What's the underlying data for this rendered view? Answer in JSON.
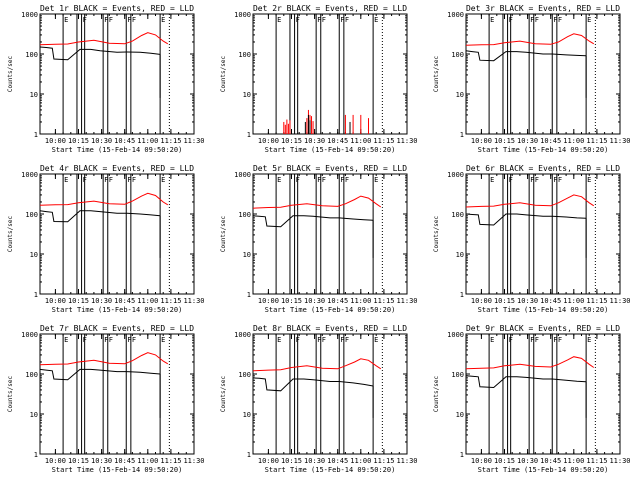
{
  "chart_data": {
    "type": "line",
    "layout": "3x3 grid",
    "xlabel": "Start Time (15-Feb-14 09:50:20)",
    "ylabel": "Counts/sec",
    "yscale": "log",
    "ylim": [
      1,
      1000
    ],
    "ytick_labels": [
      "1",
      "10",
      "100",
      "1000"
    ],
    "xlim_minutes": [
      0,
      100
    ],
    "xtick_labels": [
      "10:00",
      "10:15",
      "10:30",
      "10:45",
      "11:00",
      "11:15",
      "11:30"
    ],
    "colors": {
      "events": "#000000",
      "lld": "#ff0000"
    },
    "markers": {
      "solid_lines": [
        "10:05",
        "10:14",
        "10:17",
        "10:19",
        "10:31",
        "10:34",
        "10:46",
        "10:49",
        "11:08"
      ],
      "dotted_line": "11:14",
      "labels": [
        {
          "text": "E",
          "time": "10:05"
        },
        {
          "text": "F",
          "time": "10:17"
        },
        {
          "text": "F",
          "time": "10:31"
        },
        {
          "text": "F",
          "time": "10:34"
        },
        {
          "text": "F",
          "time": "10:46"
        },
        {
          "text": "F",
          "time": "10:49"
        },
        {
          "text": "E",
          "time": "11:08"
        }
      ]
    },
    "panels": [
      {
        "title": "Det 1r  BLACK = Events, RED = LLD",
        "red": [
          [
            0,
            170
          ],
          [
            10,
            175
          ],
          [
            18,
            178
          ],
          [
            25,
            200
          ],
          [
            35,
            220
          ],
          [
            45,
            185
          ],
          [
            55,
            180
          ],
          [
            60,
            210
          ],
          [
            66,
            290
          ],
          [
            70,
            340
          ],
          [
            75,
            300
          ],
          [
            80,
            210
          ],
          [
            83,
            180
          ]
        ],
        "black": [
          [
            0,
            150
          ],
          [
            4,
            145
          ],
          [
            8,
            140
          ],
          [
            9,
            75
          ],
          [
            18,
            72
          ],
          [
            26,
            130
          ],
          [
            33,
            130
          ],
          [
            39,
            120
          ],
          [
            50,
            110
          ],
          [
            56,
            112
          ],
          [
            65,
            110
          ],
          [
            72,
            105
          ],
          [
            78,
            98
          ]
        ]
      },
      {
        "title": "Det 2r  BLACK = Events, RED = LLD",
        "red_spikes": [
          [
            20,
            2
          ],
          [
            21,
            1.7
          ],
          [
            22,
            2.3
          ],
          [
            23,
            1.8
          ],
          [
            24,
            2.2
          ],
          [
            35,
            2.5
          ],
          [
            36,
            4
          ],
          [
            37,
            3
          ],
          [
            38,
            2.8
          ],
          [
            39,
            2.1
          ],
          [
            60,
            3
          ],
          [
            65,
            3
          ],
          [
            70,
            3
          ],
          [
            75,
            2.5
          ]
        ],
        "black_spikes": [
          [
            34,
            2
          ],
          [
            36,
            3
          ],
          [
            37,
            2.2
          ],
          [
            63,
            2
          ]
        ]
      },
      {
        "title": "Det 3r  BLACK = Events, RED = LLD",
        "red": [
          [
            0,
            165
          ],
          [
            10,
            170
          ],
          [
            18,
            172
          ],
          [
            25,
            190
          ],
          [
            35,
            210
          ],
          [
            45,
            180
          ],
          [
            55,
            175
          ],
          [
            60,
            200
          ],
          [
            66,
            270
          ],
          [
            70,
            320
          ],
          [
            75,
            290
          ],
          [
            80,
            210
          ],
          [
            83,
            180
          ]
        ],
        "black": [
          [
            0,
            120
          ],
          [
            4,
            115
          ],
          [
            8,
            110
          ],
          [
            9,
            70
          ],
          [
            18,
            68
          ],
          [
            26,
            115
          ],
          [
            33,
            115
          ],
          [
            39,
            110
          ],
          [
            50,
            100
          ],
          [
            56,
            100
          ],
          [
            65,
            95
          ],
          [
            72,
            92
          ],
          [
            78,
            90
          ]
        ]
      },
      {
        "title": "Det 4r  BLACK = Events, RED = LLD",
        "red": [
          [
            0,
            165
          ],
          [
            10,
            170
          ],
          [
            18,
            172
          ],
          [
            25,
            190
          ],
          [
            35,
            210
          ],
          [
            45,
            180
          ],
          [
            55,
            175
          ],
          [
            60,
            210
          ],
          [
            66,
            280
          ],
          [
            70,
            330
          ],
          [
            75,
            290
          ],
          [
            80,
            200
          ],
          [
            83,
            170
          ]
        ],
        "black": [
          [
            0,
            120
          ],
          [
            4,
            115
          ],
          [
            8,
            110
          ],
          [
            9,
            65
          ],
          [
            18,
            64
          ],
          [
            26,
            120
          ],
          [
            33,
            120
          ],
          [
            39,
            115
          ],
          [
            50,
            105
          ],
          [
            56,
            105
          ],
          [
            65,
            100
          ],
          [
            72,
            95
          ],
          [
            78,
            90
          ]
        ]
      },
      {
        "title": "Det 5r  BLACK = Events, RED = LLD",
        "red": [
          [
            0,
            140
          ],
          [
            10,
            145
          ],
          [
            18,
            148
          ],
          [
            25,
            165
          ],
          [
            35,
            180
          ],
          [
            45,
            160
          ],
          [
            55,
            155
          ],
          [
            60,
            180
          ],
          [
            66,
            230
          ],
          [
            70,
            280
          ],
          [
            75,
            250
          ],
          [
            80,
            180
          ],
          [
            83,
            150
          ]
        ],
        "black": [
          [
            0,
            90
          ],
          [
            4,
            88
          ],
          [
            8,
            85
          ],
          [
            9,
            50
          ],
          [
            18,
            48
          ],
          [
            26,
            90
          ],
          [
            33,
            90
          ],
          [
            39,
            88
          ],
          [
            50,
            80
          ],
          [
            56,
            80
          ],
          [
            65,
            75
          ],
          [
            72,
            72
          ],
          [
            78,
            70
          ]
        ]
      },
      {
        "title": "Det 6r  BLACK = Events, RED = LLD",
        "red": [
          [
            0,
            150
          ],
          [
            10,
            155
          ],
          [
            18,
            158
          ],
          [
            25,
            175
          ],
          [
            35,
            190
          ],
          [
            45,
            165
          ],
          [
            55,
            160
          ],
          [
            60,
            190
          ],
          [
            66,
            250
          ],
          [
            70,
            300
          ],
          [
            75,
            270
          ],
          [
            80,
            190
          ],
          [
            83,
            160
          ]
        ],
        "black": [
          [
            0,
            100
          ],
          [
            4,
            97
          ],
          [
            8,
            95
          ],
          [
            9,
            55
          ],
          [
            18,
            53
          ],
          [
            26,
            100
          ],
          [
            33,
            100
          ],
          [
            39,
            95
          ],
          [
            50,
            88
          ],
          [
            56,
            88
          ],
          [
            65,
            84
          ],
          [
            72,
            80
          ],
          [
            78,
            78
          ]
        ]
      },
      {
        "title": "Det 7r  BLACK = Events, RED = LLD",
        "red": [
          [
            0,
            170
          ],
          [
            10,
            175
          ],
          [
            18,
            178
          ],
          [
            25,
            200
          ],
          [
            35,
            220
          ],
          [
            45,
            185
          ],
          [
            55,
            180
          ],
          [
            60,
            215
          ],
          [
            66,
            290
          ],
          [
            70,
            340
          ],
          [
            75,
            300
          ],
          [
            80,
            210
          ],
          [
            83,
            180
          ]
        ],
        "black": [
          [
            0,
            130
          ],
          [
            4,
            125
          ],
          [
            8,
            120
          ],
          [
            9,
            75
          ],
          [
            18,
            72
          ],
          [
            26,
            130
          ],
          [
            33,
            130
          ],
          [
            39,
            125
          ],
          [
            50,
            115
          ],
          [
            56,
            115
          ],
          [
            65,
            110
          ],
          [
            72,
            105
          ],
          [
            78,
            100
          ]
        ]
      },
      {
        "title": "Det 8r  BLACK = Events, RED = LLD",
        "red": [
          [
            0,
            120
          ],
          [
            10,
            125
          ],
          [
            18,
            128
          ],
          [
            25,
            145
          ],
          [
            35,
            160
          ],
          [
            45,
            140
          ],
          [
            55,
            135
          ],
          [
            60,
            160
          ],
          [
            66,
            200
          ],
          [
            70,
            240
          ],
          [
            75,
            220
          ],
          [
            80,
            160
          ],
          [
            83,
            135
          ]
        ],
        "black": [
          [
            0,
            80
          ],
          [
            4,
            78
          ],
          [
            8,
            75
          ],
          [
            9,
            40
          ],
          [
            18,
            38
          ],
          [
            26,
            75
          ],
          [
            33,
            75
          ],
          [
            39,
            72
          ],
          [
            50,
            65
          ],
          [
            56,
            65
          ],
          [
            65,
            60
          ],
          [
            72,
            55
          ],
          [
            78,
            50
          ]
        ]
      },
      {
        "title": "Det 9r  BLACK = Events, RED = LLD",
        "red": [
          [
            0,
            135
          ],
          [
            10,
            140
          ],
          [
            18,
            142
          ],
          [
            25,
            160
          ],
          [
            35,
            175
          ],
          [
            45,
            155
          ],
          [
            55,
            150
          ],
          [
            60,
            175
          ],
          [
            66,
            225
          ],
          [
            70,
            270
          ],
          [
            75,
            245
          ],
          [
            80,
            175
          ],
          [
            83,
            145
          ]
        ],
        "black": [
          [
            0,
            90
          ],
          [
            4,
            88
          ],
          [
            8,
            85
          ],
          [
            9,
            48
          ],
          [
            18,
            46
          ],
          [
            26,
            85
          ],
          [
            33,
            85
          ],
          [
            39,
            82
          ],
          [
            50,
            75
          ],
          [
            56,
            75
          ],
          [
            65,
            70
          ],
          [
            72,
            66
          ],
          [
            78,
            64
          ]
        ]
      }
    ]
  }
}
